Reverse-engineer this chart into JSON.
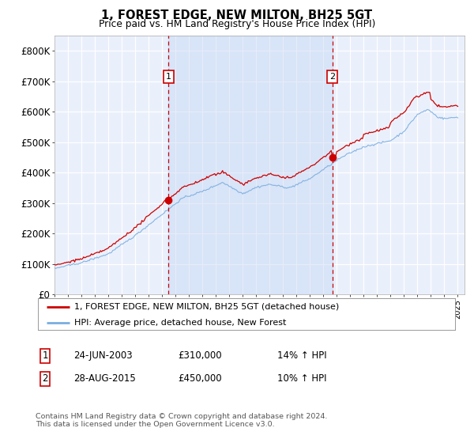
{
  "title": "1, FOREST EDGE, NEW MILTON, BH25 5GT",
  "subtitle": "Price paid vs. HM Land Registry's House Price Index (HPI)",
  "legend_line1": "1, FOREST EDGE, NEW MILTON, BH25 5GT (detached house)",
  "legend_line2": "HPI: Average price, detached house, New Forest",
  "footnote": "Contains HM Land Registry data © Crown copyright and database right 2024.\nThis data is licensed under the Open Government Licence v3.0.",
  "annotation1_label": "1",
  "annotation1_date": "24-JUN-2003",
  "annotation1_price": "£310,000",
  "annotation1_hpi": "14% ↑ HPI",
  "annotation1_year": 2003.48,
  "annotation1_value": 310000,
  "annotation2_label": "2",
  "annotation2_date": "28-AUG-2015",
  "annotation2_price": "£450,000",
  "annotation2_hpi": "10% ↑ HPI",
  "annotation2_year": 2015.66,
  "annotation2_value": 450000,
  "ylim": [
    0,
    850000
  ],
  "yticks": [
    0,
    100000,
    200000,
    300000,
    400000,
    500000,
    600000,
    700000,
    800000
  ],
  "ytick_labels": [
    "£0",
    "£100K",
    "£200K",
    "£300K",
    "£400K",
    "£500K",
    "£600K",
    "£700K",
    "£800K"
  ],
  "background_color": "#eaf0fb",
  "shaded_region_color": "#d0dff5",
  "grid_color": "#ffffff",
  "line1_color": "#cc0000",
  "line2_color": "#7aade0",
  "annotation_box_color": "#cc0000",
  "dashed_line_color": "#cc0000",
  "xlim_start": 1995,
  "xlim_end": 2025.5
}
